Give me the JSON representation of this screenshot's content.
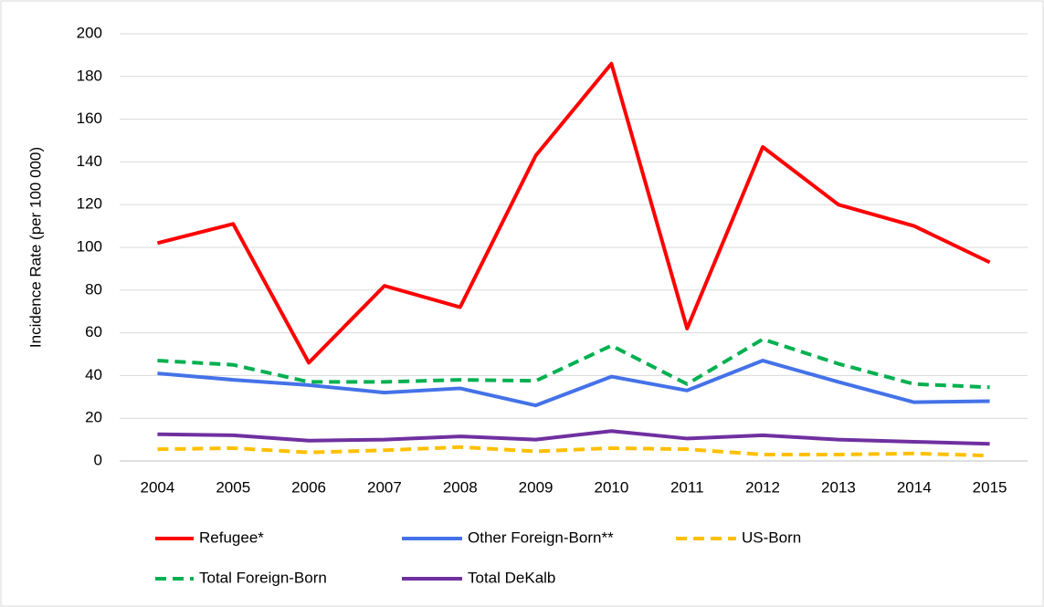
{
  "chart_data": {
    "type": "line",
    "y_label": "Incidence Rate (per 100 000)",
    "categories": [
      "2004",
      "2005",
      "2006",
      "2007",
      "2008",
      "2009",
      "2010",
      "2011",
      "2012",
      "2013",
      "2014",
      "2015"
    ],
    "series": [
      {
        "name": "Refugee*",
        "color": "#ff0000",
        "dashed": false,
        "values": [
          102,
          111,
          46,
          82,
          72,
          143,
          186,
          62,
          147,
          120,
          110,
          93
        ]
      },
      {
        "name": "Other Foreign-Born**",
        "color": "#4472e8",
        "dashed": false,
        "values": [
          41,
          38,
          35.5,
          32,
          34,
          26,
          39.5,
          33,
          47,
          37,
          27.5,
          28
        ]
      },
      {
        "name": "US-Born",
        "color": "#ffc000",
        "dashed": true,
        "values": [
          5.5,
          6,
          4,
          5,
          6.5,
          4.5,
          6,
          5.5,
          3,
          3,
          3.5,
          2.5
        ]
      },
      {
        "name": "Total Foreign-Born",
        "color": "#00b050",
        "dashed": true,
        "values": [
          47,
          45,
          37,
          37,
          38,
          37.5,
          54,
          36,
          57,
          45.5,
          36,
          34.5
        ]
      },
      {
        "name": "Total DeKalb",
        "color": "#7030a0",
        "dashed": false,
        "values": [
          12.5,
          12,
          9.5,
          10,
          11.5,
          10,
          14,
          10.5,
          12,
          10,
          9,
          8
        ]
      }
    ],
    "ylim": [
      0,
      200
    ],
    "yticks": [
      0,
      20,
      40,
      60,
      80,
      100,
      120,
      140,
      160,
      180,
      200
    ],
    "grid": true,
    "legend": "bottom"
  }
}
